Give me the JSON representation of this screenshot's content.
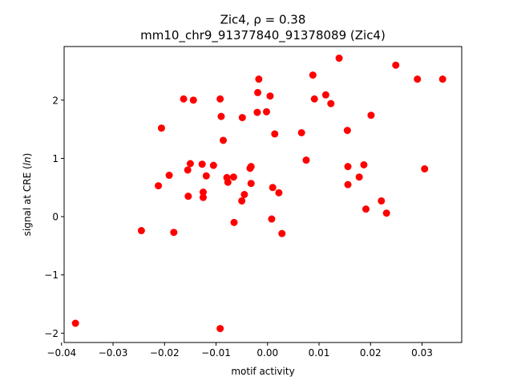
{
  "chart_data": {
    "type": "scatter",
    "title_line1": "Zic4, ρ = 0.38",
    "title_line2": "mm10_chr9_91377840_91378089 (Zic4)",
    "xlabel": "motif activity",
    "ylabel_prefix": "signal at CRE (",
    "ylabel_italic": "ln",
    "ylabel_suffix": ")",
    "xlim": [
      -0.0395,
      0.0377
    ],
    "ylim": [
      -2.16,
      2.92
    ],
    "x_ticks": [
      -0.04,
      -0.03,
      -0.02,
      -0.01,
      0.0,
      0.01,
      0.02,
      0.03
    ],
    "x_tick_labels": [
      "−0.04",
      "−0.03",
      "−0.02",
      "−0.01",
      "0.00",
      "0.01",
      "0.02",
      "0.03"
    ],
    "y_ticks": [
      -2,
      -1,
      0,
      1,
      2
    ],
    "y_tick_labels": [
      "−2",
      "−1",
      "0",
      "1",
      "2"
    ],
    "marker_color": "#ff0000",
    "points": [
      {
        "x": -0.0373,
        "y": -1.83
      },
      {
        "x": -0.0245,
        "y": -0.24
      },
      {
        "x": -0.0212,
        "y": 0.53
      },
      {
        "x": -0.0206,
        "y": 1.52
      },
      {
        "x": -0.0191,
        "y": 0.71
      },
      {
        "x": -0.0182,
        "y": -0.27
      },
      {
        "x": -0.0163,
        "y": 2.02
      },
      {
        "x": -0.0155,
        "y": 0.8
      },
      {
        "x": -0.0154,
        "y": 0.35
      },
      {
        "x": -0.015,
        "y": 0.91
      },
      {
        "x": -0.0144,
        "y": 2.0
      },
      {
        "x": -0.0127,
        "y": 0.9
      },
      {
        "x": -0.0125,
        "y": 0.42
      },
      {
        "x": -0.0125,
        "y": 0.33
      },
      {
        "x": -0.0119,
        "y": 0.7
      },
      {
        "x": -0.0105,
        "y": 0.88
      },
      {
        "x": -0.0092,
        "y": 2.02
      },
      {
        "x": -0.009,
        "y": 1.72
      },
      {
        "x": -0.0092,
        "y": -1.92
      },
      {
        "x": -0.0086,
        "y": 1.31
      },
      {
        "x": -0.0079,
        "y": 0.67
      },
      {
        "x": -0.0077,
        "y": 0.59
      },
      {
        "x": -0.0066,
        "y": 0.68
      },
      {
        "x": -0.0065,
        "y": -0.1
      },
      {
        "x": -0.0049,
        "y": 1.7
      },
      {
        "x": -0.005,
        "y": 0.27
      },
      {
        "x": -0.0045,
        "y": 0.38
      },
      {
        "x": -0.0034,
        "y": 0.83
      },
      {
        "x": -0.0032,
        "y": 0.86
      },
      {
        "x": -0.0032,
        "y": 0.57
      },
      {
        "x": -0.002,
        "y": 1.79
      },
      {
        "x": -0.0019,
        "y": 2.13
      },
      {
        "x": -0.0017,
        "y": 2.36
      },
      {
        "x": -0.0002,
        "y": 1.8
      },
      {
        "x": 0.0005,
        "y": 2.07
      },
      {
        "x": 0.0008,
        "y": -0.04
      },
      {
        "x": 0.001,
        "y": 0.5
      },
      {
        "x": 0.0014,
        "y": 1.42
      },
      {
        "x": 0.0022,
        "y": 0.41
      },
      {
        "x": 0.0028,
        "y": -0.29
      },
      {
        "x": 0.0066,
        "y": 1.44
      },
      {
        "x": 0.0075,
        "y": 0.97
      },
      {
        "x": 0.0088,
        "y": 2.43
      },
      {
        "x": 0.0091,
        "y": 2.02
      },
      {
        "x": 0.0113,
        "y": 2.09
      },
      {
        "x": 0.0123,
        "y": 1.94
      },
      {
        "x": 0.0139,
        "y": 2.72
      },
      {
        "x": 0.0155,
        "y": 1.48
      },
      {
        "x": 0.0156,
        "y": 0.86
      },
      {
        "x": 0.0156,
        "y": 0.55
      },
      {
        "x": 0.0178,
        "y": 0.68
      },
      {
        "x": 0.0187,
        "y": 0.89
      },
      {
        "x": 0.0191,
        "y": 0.13
      },
      {
        "x": 0.0201,
        "y": 1.74
      },
      {
        "x": 0.0221,
        "y": 0.27
      },
      {
        "x": 0.0231,
        "y": 0.06
      },
      {
        "x": 0.0249,
        "y": 2.6
      },
      {
        "x": 0.0291,
        "y": 2.36
      },
      {
        "x": 0.0305,
        "y": 0.82
      },
      {
        "x": 0.034,
        "y": 2.36
      }
    ]
  }
}
